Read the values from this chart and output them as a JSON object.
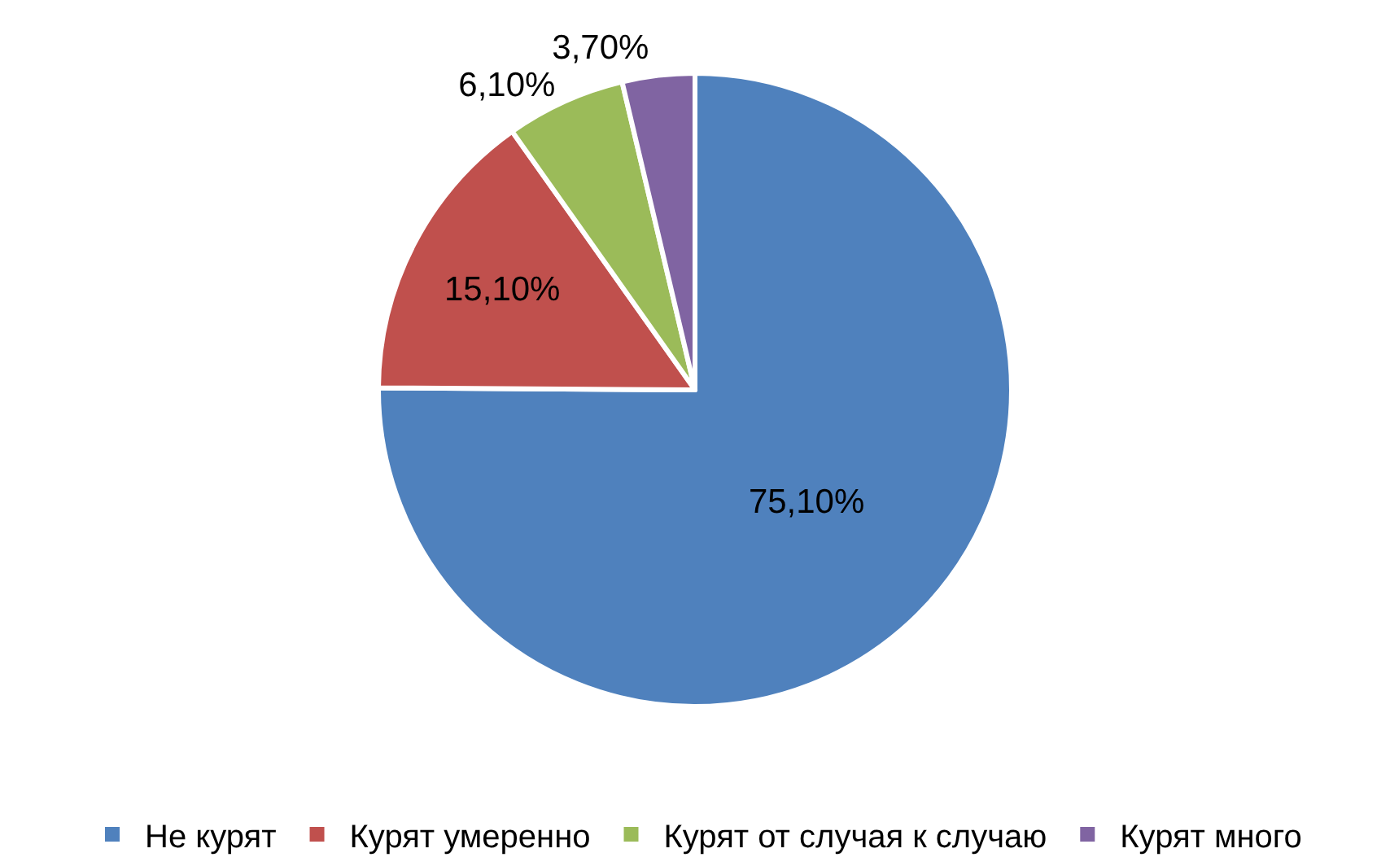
{
  "chart_data": {
    "type": "pie",
    "categories": [
      "Не курят",
      "Курят умеренно",
      "Курят от случая к случаю",
      "Курят много"
    ],
    "values": [
      75.1,
      15.1,
      6.1,
      3.7
    ],
    "colors": [
      "#4f81bd",
      "#c0504d",
      "#9bbb59",
      "#8064a2"
    ],
    "value_labels": [
      "75,10%",
      "15,10%",
      "6,10%",
      "3,70%"
    ],
    "legend": "bottom"
  }
}
